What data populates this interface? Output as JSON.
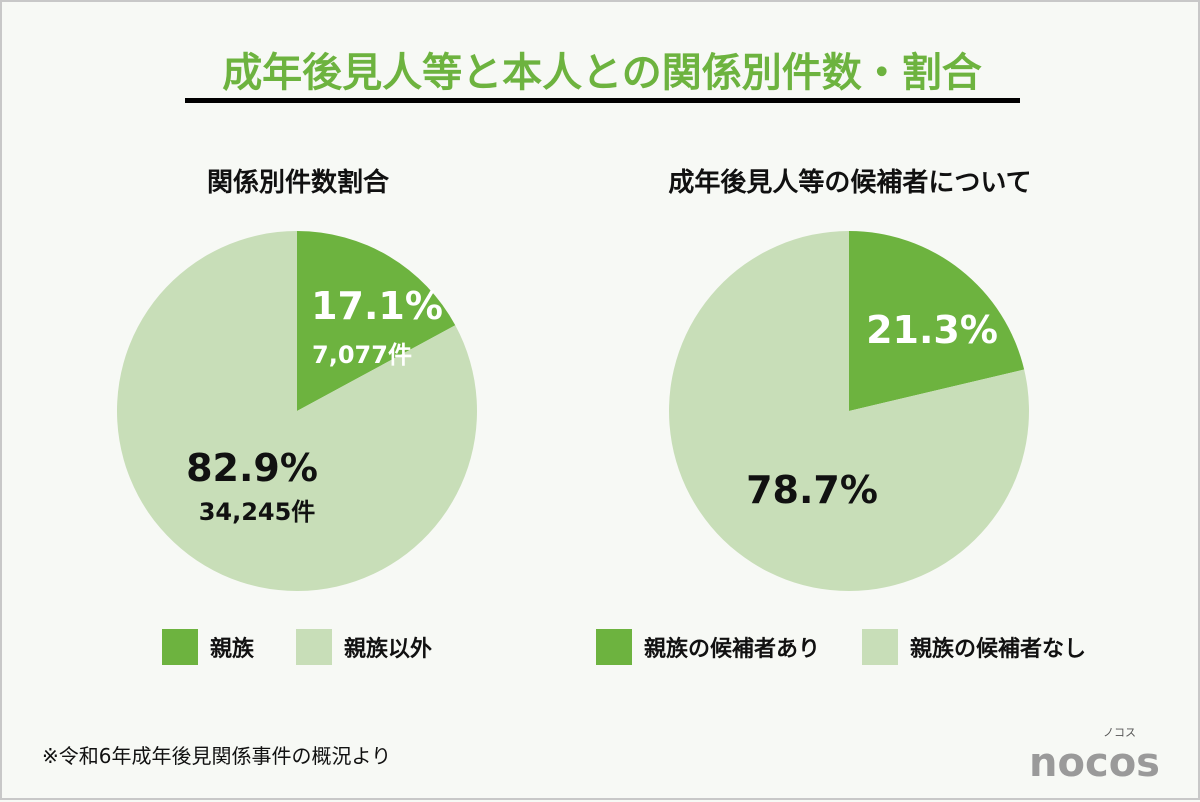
{
  "title": "成年後見人等と本人との関係別件数・割合",
  "colors": {
    "primary": "#6db33f",
    "secondary": "#c8deb8"
  },
  "chart_data": [
    {
      "type": "pie",
      "title": "関係別件数割合",
      "slices": [
        {
          "label": "親族",
          "percent": 17.1,
          "percent_text": "17.1%",
          "count_text": "7,077件",
          "count": 7077,
          "color": "#6db33f"
        },
        {
          "label": "親族以外",
          "percent": 82.9,
          "percent_text": "82.9%",
          "count_text": "34,245件",
          "count": 34245,
          "color": "#c8deb8"
        }
      ]
    },
    {
      "type": "pie",
      "title": "成年後見人等の候補者について",
      "slices": [
        {
          "label": "親族の候補者あり",
          "percent": 21.3,
          "percent_text": "21.3%",
          "color": "#6db33f"
        },
        {
          "label": "親族の候補者なし",
          "percent": 78.7,
          "percent_text": "78.7%",
          "color": "#c8deb8"
        }
      ]
    }
  ],
  "footnote": "※令和6年成年後見関係事件の概況より",
  "logo": {
    "text": "nocos",
    "kana": "ノコス"
  }
}
